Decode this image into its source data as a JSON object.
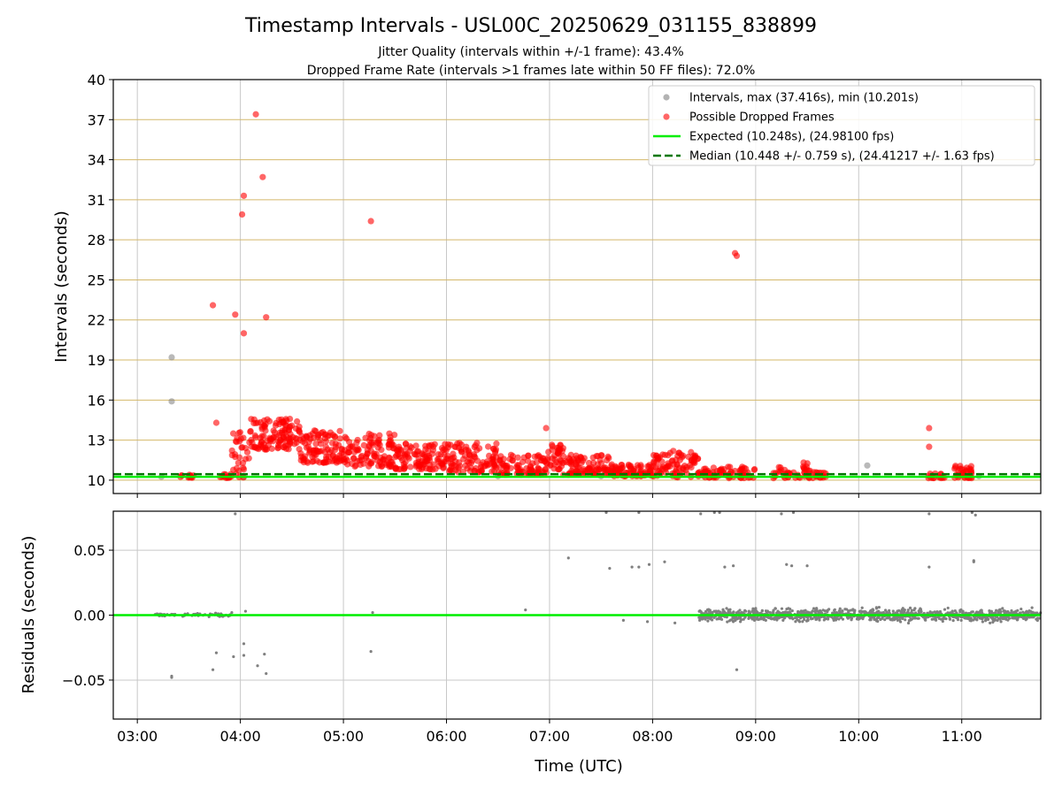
{
  "title": "Timestamp Intervals - USL00C_20250629_031155_838899",
  "subtitle1": "Jitter Quality (intervals within +/-1 frame): 43.4%",
  "subtitle2": "Dropped Frame Rate (intervals >1 frames late within 50 FF files): 72.0%",
  "colors": {
    "intervals": "#808080",
    "dropped": "#ff0000",
    "expected": "#00ee00",
    "median": "#007700",
    "hgrid": "#d4b86a",
    "grid": "#c8c8c8"
  },
  "chart_data": [
    {
      "type": "scatter",
      "ylabel": "Intervals (seconds)",
      "ylim": [
        9,
        40
      ],
      "xlim": [
        "02:46",
        "11:46"
      ],
      "yticks": [
        10,
        13,
        16,
        19,
        22,
        25,
        28,
        31,
        34,
        37,
        40
      ],
      "xticks": [
        "03:00",
        "04:00",
        "05:00",
        "06:00",
        "07:00",
        "08:00",
        "09:00",
        "10:00",
        "11:00"
      ],
      "grid": true,
      "legend_position": "top-right",
      "legend": [
        {
          "key": "intervals",
          "label": "Intervals, max (37.416s), min (10.201s)",
          "marker": "dot"
        },
        {
          "key": "dropped",
          "label": "Possible Dropped Frames",
          "marker": "dot"
        },
        {
          "key": "expected",
          "label": "Expected (10.248s), (24.98100 fps)",
          "marker": "line"
        },
        {
          "key": "median",
          "label": "Median (10.448 +/- 0.759 s), (24.41217 +/- 1.63 fps)",
          "marker": "dash"
        }
      ],
      "expected_value": 10.248,
      "median_value": 10.448,
      "intervals_points": [
        [
          "03:20",
          19.2
        ],
        [
          "03:20",
          15.9
        ],
        [
          "03:14",
          10.25
        ],
        [
          "03:30",
          10.25
        ],
        [
          "04:02",
          10.22
        ],
        [
          "06:30",
          10.3
        ],
        [
          "07:30",
          10.3
        ],
        [
          "08:30",
          10.3
        ],
        [
          "10:05",
          11.1
        ],
        [
          "11:10",
          10.3
        ]
      ],
      "dropped_outliers": [
        [
          "03:44",
          23.1
        ],
        [
          "03:57",
          22.4
        ],
        [
          "04:01",
          29.9
        ],
        [
          "04:02",
          31.3
        ],
        [
          "04:02",
          21.0
        ],
        [
          "04:09",
          37.4
        ],
        [
          "04:13",
          32.7
        ],
        [
          "04:15",
          22.2
        ],
        [
          "05:16",
          29.4
        ],
        [
          "08:48",
          27.0
        ],
        [
          "08:49",
          26.8
        ],
        [
          "03:46",
          14.3
        ],
        [
          "10:41",
          13.9
        ],
        [
          "10:41",
          12.5
        ],
        [
          "06:58",
          13.9
        ]
      ],
      "dropped_clusters": [
        {
          "x_start": "03:24",
          "x_end": "03:34",
          "y_min": 10.15,
          "y_max": 10.4,
          "count": 12
        },
        {
          "x_start": "03:47",
          "x_end": "03:55",
          "y_min": 10.15,
          "y_max": 10.5,
          "count": 14
        },
        {
          "x_start": "03:55",
          "x_end": "04:05",
          "y_min": 10.2,
          "y_max": 13.8,
          "count": 30
        },
        {
          "x_start": "04:05",
          "x_end": "04:35",
          "y_min": 12.3,
          "y_max": 14.6,
          "count": 120
        },
        {
          "x_start": "04:35",
          "x_end": "05:00",
          "y_min": 11.3,
          "y_max": 13.8,
          "count": 100
        },
        {
          "x_start": "05:00",
          "x_end": "05:30",
          "y_min": 11.0,
          "y_max": 13.5,
          "count": 110
        },
        {
          "x_start": "05:30",
          "x_end": "06:00",
          "y_min": 10.8,
          "y_max": 12.8,
          "count": 110
        },
        {
          "x_start": "06:00",
          "x_end": "06:30",
          "y_min": 10.6,
          "y_max": 12.9,
          "count": 100
        },
        {
          "x_start": "06:30",
          "x_end": "06:58",
          "y_min": 10.4,
          "y_max": 11.9,
          "count": 90
        },
        {
          "x_start": "06:58",
          "x_end": "07:08",
          "y_min": 10.8,
          "y_max": 12.9,
          "count": 40
        },
        {
          "x_start": "07:08",
          "x_end": "07:35",
          "y_min": 10.4,
          "y_max": 11.9,
          "count": 90
        },
        {
          "x_start": "07:35",
          "x_end": "08:00",
          "y_min": 10.3,
          "y_max": 11.2,
          "count": 80
        },
        {
          "x_start": "08:00",
          "x_end": "08:27",
          "y_min": 10.2,
          "y_max": 12.2,
          "count": 90
        },
        {
          "x_start": "08:27",
          "x_end": "09:00",
          "y_min": 10.15,
          "y_max": 11.0,
          "count": 70
        },
        {
          "x_start": "09:10",
          "x_end": "09:17",
          "y_min": 10.15,
          "y_max": 11.0,
          "count": 12
        },
        {
          "x_start": "09:17",
          "x_end": "09:42",
          "y_min": 10.15,
          "y_max": 10.6,
          "count": 40
        },
        {
          "x_start": "09:27",
          "x_end": "09:32",
          "y_min": 10.5,
          "y_max": 11.4,
          "count": 10
        },
        {
          "x_start": "10:40",
          "x_end": "10:50",
          "y_min": 10.15,
          "y_max": 10.6,
          "count": 15
        },
        {
          "x_start": "10:55",
          "x_end": "11:06",
          "y_min": 10.15,
          "y_max": 11.1,
          "count": 35
        }
      ]
    },
    {
      "type": "scatter",
      "xlabel": "Time (UTC)",
      "ylabel": "Residuals (seconds)",
      "ylim": [
        -0.08,
        0.08
      ],
      "yticks": [
        0.05,
        0.0,
        -0.05
      ],
      "ytick_labels": [
        "0.05",
        "0.00",
        "−0.05"
      ],
      "xticks": [
        "03:00",
        "04:00",
        "05:00",
        "06:00",
        "07:00",
        "08:00",
        "09:00",
        "10:00",
        "11:00"
      ],
      "grid": true,
      "zero_line_color": "#00ee00",
      "scattered_points": [
        [
          "03:20",
          -0.047
        ],
        [
          "03:20",
          -0.048
        ],
        [
          "03:44",
          -0.042
        ],
        [
          "03:46",
          -0.029
        ],
        [
          "03:56",
          -0.032
        ],
        [
          "04:02",
          -0.031
        ],
        [
          "04:02",
          -0.022
        ],
        [
          "04:10",
          -0.039
        ],
        [
          "04:14",
          -0.03
        ],
        [
          "04:15",
          -0.045
        ],
        [
          "05:16",
          -0.028
        ],
        [
          "05:17",
          0.002
        ],
        [
          "03:57",
          0.078
        ],
        [
          "03:55",
          0.002
        ],
        [
          "04:03",
          0.003
        ],
        [
          "06:46",
          0.004
        ],
        [
          "07:11",
          0.044
        ],
        [
          "07:35",
          0.036
        ],
        [
          "07:48",
          0.037
        ],
        [
          "07:52",
          0.037
        ],
        [
          "07:58",
          0.039
        ],
        [
          "08:07",
          0.041
        ],
        [
          "08:28",
          0.078
        ],
        [
          "08:42",
          0.037
        ],
        [
          "08:47",
          0.038
        ],
        [
          "08:49",
          -0.042
        ],
        [
          "09:18",
          0.039
        ],
        [
          "09:21",
          0.038
        ],
        [
          "09:30",
          0.038
        ],
        [
          "10:41",
          0.037
        ],
        [
          "11:07",
          0.041
        ],
        [
          "11:07",
          0.042
        ],
        [
          "07:33",
          0.079
        ],
        [
          "07:52",
          0.079
        ],
        [
          "08:36",
          0.079
        ],
        [
          "08:39",
          0.079
        ],
        [
          "09:15",
          0.078
        ],
        [
          "09:22",
          0.079
        ],
        [
          "10:41",
          0.078
        ],
        [
          "11:06",
          0.079
        ],
        [
          "11:08",
          0.077
        ],
        [
          "07:57",
          -0.005
        ],
        [
          "08:13",
          -0.006
        ],
        [
          "07:43",
          -0.004
        ]
      ],
      "band_points": [
        {
          "x_start": "03:10",
          "x_end": "03:55",
          "spread": 0.002,
          "count": 60
        },
        {
          "x_start": "08:27",
          "x_end": "11:46",
          "spread": 0.007,
          "count": 1100
        }
      ]
    }
  ]
}
